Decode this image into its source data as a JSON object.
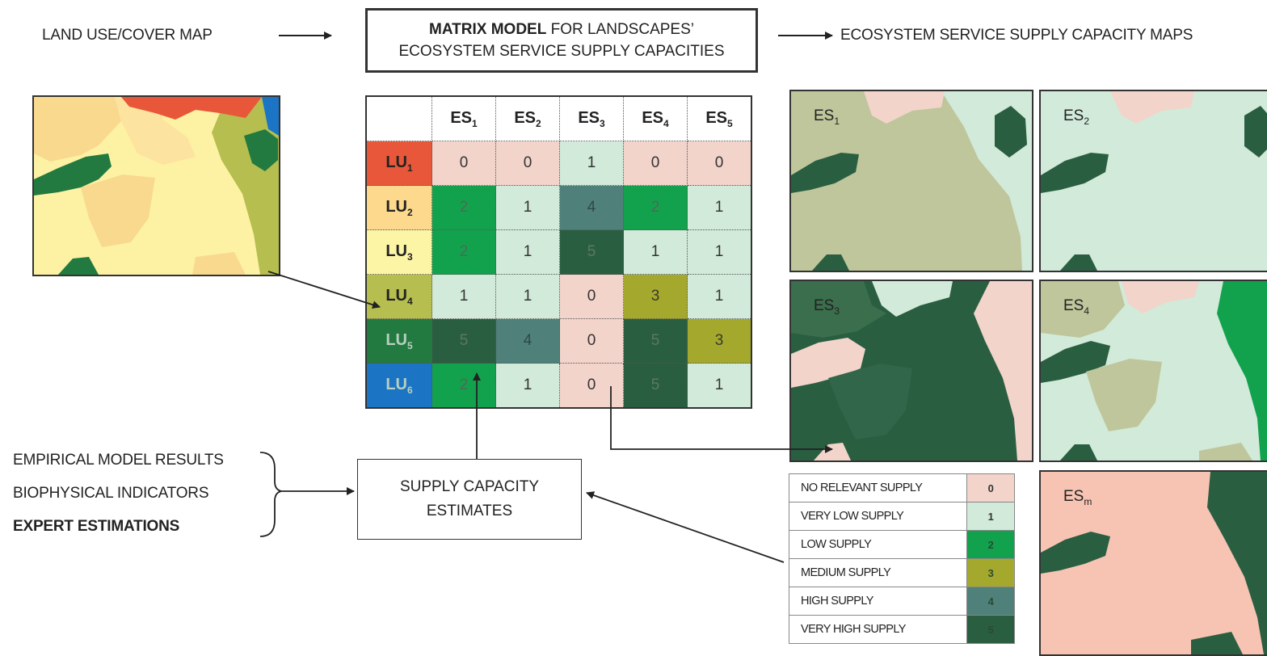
{
  "labels": {
    "land_use_map": "LAND USE/COVER MAP",
    "title_line1_bold": "MATRIX MODEL",
    "title_line1_rest": " FOR LANDSCAPES’",
    "title_line2": "ECOSYSTEM SERVICE SUPPLY CAPACITIES",
    "supply_maps": "ECOSYSTEM SERVICE SUPPLY CAPACITY MAPS",
    "estimates_line1": "SUPPLY CAPACITY",
    "estimates_line2": "ESTIMATES",
    "sources": [
      "EMPIRICAL MODEL RESULTS",
      "BIOPHYSICAL INDICATORS",
      "EXPERT ESTIMATIONS"
    ]
  },
  "matrix": {
    "columns": [
      {
        "base": "ES",
        "sub": "1"
      },
      {
        "base": "ES",
        "sub": "2"
      },
      {
        "base": "ES",
        "sub": "3"
      },
      {
        "base": "ES",
        "sub": "4"
      },
      {
        "base": "ES",
        "sub": "5"
      }
    ],
    "rows": [
      {
        "base": "LU",
        "sub": "1",
        "color": "#e8573a",
        "values": [
          "0",
          "0",
          "1",
          "0",
          "0"
        ]
      },
      {
        "base": "LU",
        "sub": "2",
        "color": "#fcd98c",
        "values": [
          "2",
          "1",
          "4",
          "2",
          "1"
        ]
      },
      {
        "base": "LU",
        "sub": "3",
        "color": "#fdf5a6",
        "values": [
          "2",
          "1",
          "5",
          "1",
          "1"
        ]
      },
      {
        "base": "LU",
        "sub": "4",
        "color": "#b5be4e",
        "values": [
          "1",
          "1",
          "0",
          "3",
          "1"
        ]
      },
      {
        "base": "LU",
        "sub": "5",
        "color": "#237a40",
        "values": [
          "5",
          "4",
          "0",
          "5",
          "3"
        ]
      },
      {
        "base": "LU",
        "sub": "6",
        "color": "#1b74c4",
        "values": [
          "2",
          "1",
          "0",
          "5",
          "1"
        ]
      }
    ]
  },
  "legend": [
    {
      "label": "NO RELEVANT SUPPLY",
      "value": "0"
    },
    {
      "label": "VERY LOW SUPPLY",
      "value": "1"
    },
    {
      "label": "LOW SUPPLY",
      "value": "2"
    },
    {
      "label": "MEDIUM SUPPLY",
      "value": "3"
    },
    {
      "label": "HIGH SUPPLY",
      "value": "4"
    },
    {
      "label": "VERY HIGH SUPPLY",
      "value": "5"
    }
  ],
  "class_colors": {
    "0": "#f2d4cb",
    "1": "#d2ead9",
    "2": "#12a24e",
    "3": "#a4a92e",
    "4": "#4f807a",
    "5": "#2a5e41"
  },
  "maps": [
    {
      "base": "ES",
      "sub": "1"
    },
    {
      "base": "ES",
      "sub": "2"
    },
    {
      "base": "ES",
      "sub": "3"
    },
    {
      "base": "ES",
      "sub": "4"
    },
    {
      "base": "ES",
      "sub": "m"
    }
  ]
}
